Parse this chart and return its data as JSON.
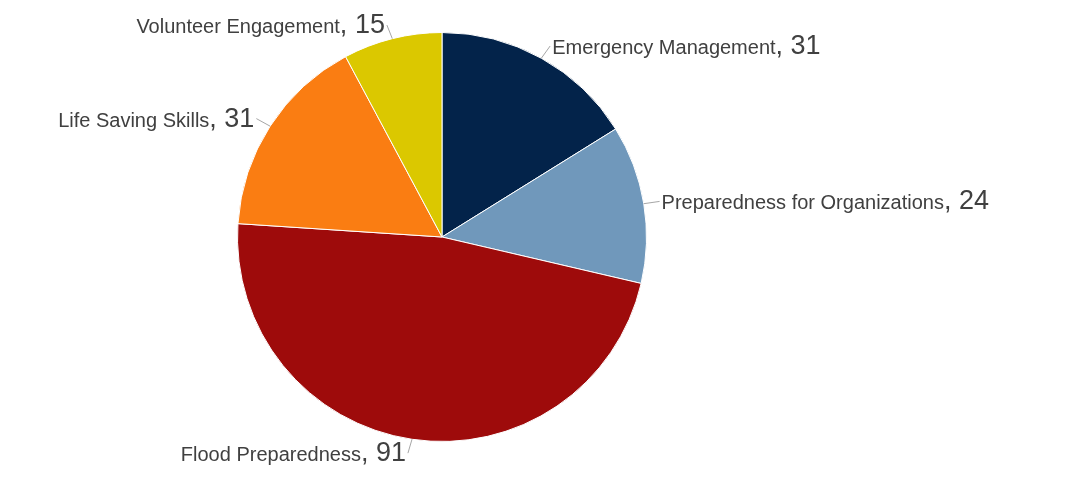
{
  "chart_data": {
    "type": "pie",
    "categories": [
      "Emergency Management",
      "Preparedness for Organizations",
      "Flood Preparedness",
      "Life Saving Skills",
      "Volunteer Engagement"
    ],
    "values": [
      31,
      24,
      91,
      31,
      15
    ],
    "colors": [
      "#03234a",
      "#7098bb",
      "#9e0b0b",
      "#fa7d12",
      "#dbc800"
    ],
    "value_labels": [
      ", 31",
      ", 24",
      ", 91",
      ", 31",
      ", 15"
    ],
    "legend": false
  }
}
